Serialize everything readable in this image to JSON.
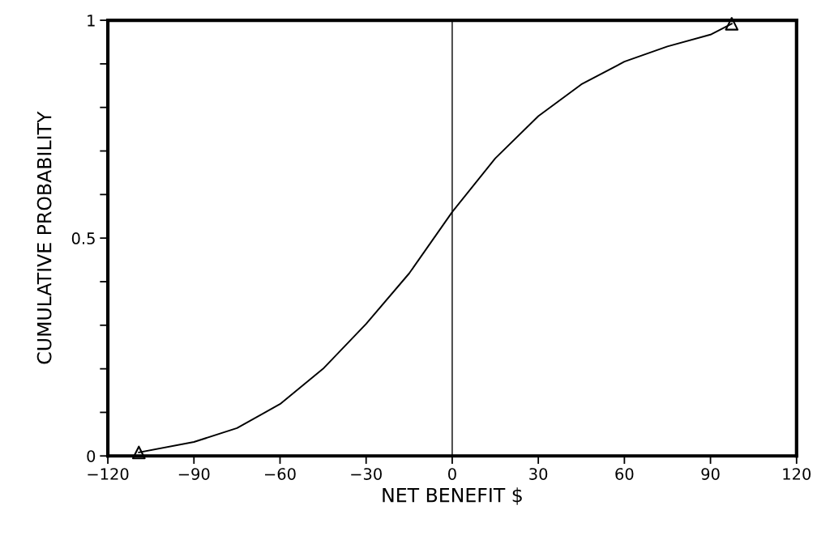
{
  "chart_data": {
    "type": "line",
    "xlabel": "NET BENEFIT $",
    "ylabel": "CUMULATIVE PROBABILITY",
    "series": [
      {
        "color": "#000000",
        "marker": "none",
        "x": [
          -109.2,
          -90,
          -75,
          -60,
          -45,
          -30,
          -15,
          0,
          15,
          30,
          45,
          60,
          75,
          90,
          97.4
        ],
        "values": [
          0.008,
          0.032,
          0.064,
          0.119,
          0.2,
          0.303,
          0.419,
          0.56,
          0.683,
          0.78,
          0.853,
          0.905,
          0.94,
          0.967,
          0.992
        ]
      },
      {
        "type": "scatter",
        "color": "#000000",
        "marker": "triangle",
        "x": [
          -109.2,
          97.4
        ],
        "values": [
          0.008,
          0.992
        ]
      }
    ],
    "xlim": [
      -120,
      120
    ],
    "xticks": [
      {
        "value": -120,
        "label": "−120"
      },
      {
        "value": -90,
        "label": "−90"
      },
      {
        "value": -60,
        "label": "−60"
      },
      {
        "value": -30,
        "label": "−30"
      },
      0,
      30,
      60,
      90,
      120
    ],
    "ylim": [
      0,
      1
    ],
    "yticks": [
      0,
      {
        "value": 0.1,
        "label": null
      },
      {
        "value": 0.2,
        "label": null
      },
      {
        "value": 0.3,
        "label": null
      },
      {
        "value": 0.4,
        "label": null
      },
      0.5,
      {
        "value": 0.6,
        "label": null
      },
      {
        "value": 0.7,
        "label": null
      },
      {
        "value": 0.8,
        "label": null
      },
      {
        "value": 0.9,
        "label": null
      },
      1
    ],
    "ref_lines": [
      {
        "axis": "x",
        "value": 0,
        "color": "#000000",
        "line_style": "solid"
      }
    ],
    "grid": false
  }
}
